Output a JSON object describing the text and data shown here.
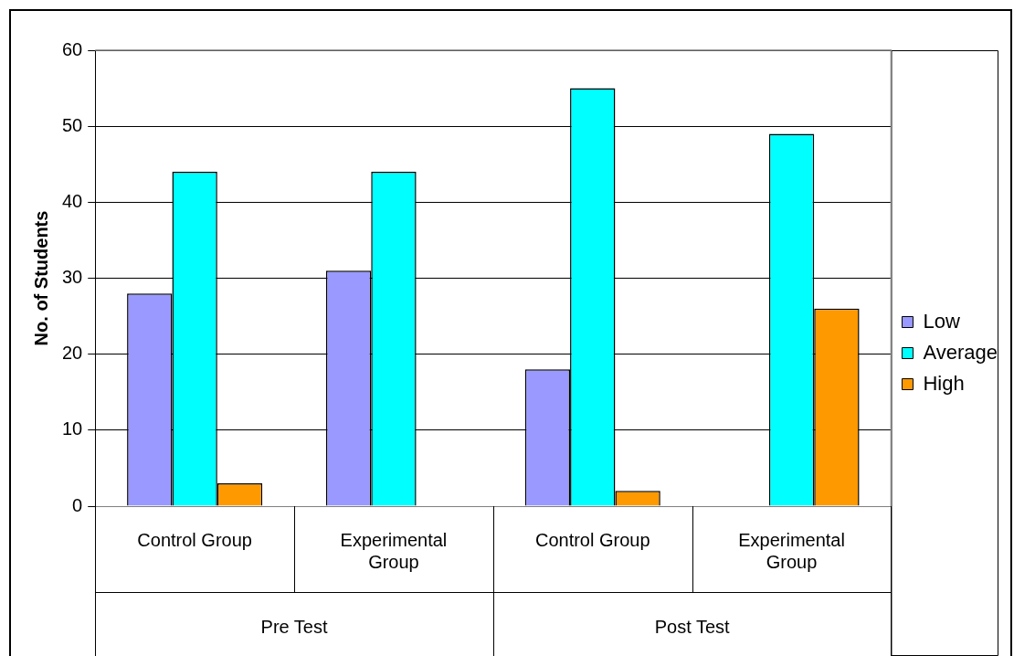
{
  "chart_data": {
    "type": "bar",
    "ylabel": "No. of Students",
    "categories": [
      "Control Group",
      "Experimental Group",
      "Control Group",
      "Experimental Group"
    ],
    "series": [
      {
        "name": "Low",
        "color": "#9999ff",
        "values": [
          28,
          31,
          18,
          0
        ]
      },
      {
        "name": "Average",
        "color": "#00ffff",
        "values": [
          44,
          44,
          55,
          49
        ]
      },
      {
        "name": "High",
        "color": "#ff9900",
        "values": [
          3,
          0,
          2,
          26
        ]
      }
    ],
    "annotations": [
      "Pre Test",
      "Post Test"
    ],
    "ylim": [
      0,
      60
    ],
    "yticks": [
      0,
      10,
      20,
      30,
      40,
      50,
      60
    ],
    "grid": "y",
    "legend": "right"
  }
}
